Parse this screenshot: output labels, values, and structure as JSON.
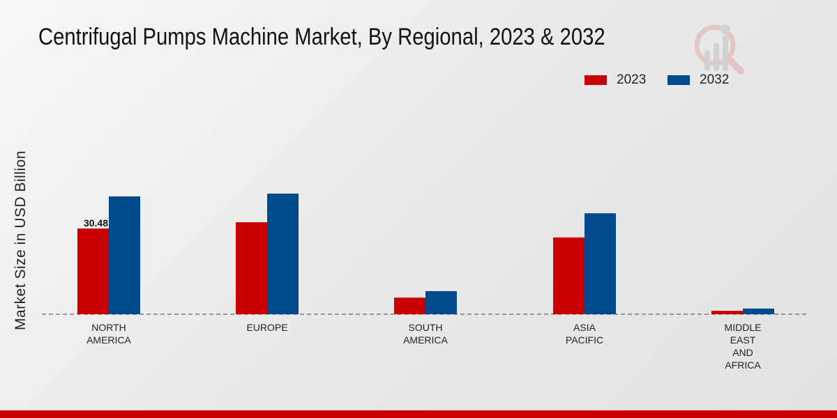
{
  "chart_data": {
    "type": "bar",
    "title": "Centrifugal Pumps Machine Market, By Regional, 2023 & 2032",
    "xlabel": "",
    "ylabel": "Market Size in USD Billion",
    "categories": [
      [
        "NORTH",
        "AMERICA"
      ],
      [
        "EUROPE"
      ],
      [
        "SOUTH",
        "AMERICA"
      ],
      [
        "ASIA",
        "PACIFIC"
      ],
      [
        "MIDDLE",
        "EAST",
        "AND",
        "AFRICA"
      ]
    ],
    "series": [
      {
        "name": "2023",
        "color": "#c80000",
        "values": [
          30.48,
          32.7,
          5.9,
          27.3,
          1.2
        ]
      },
      {
        "name": "2032",
        "color": "#004a8c",
        "values": [
          41.9,
          42.9,
          8.2,
          35.9,
          2.0
        ]
      }
    ],
    "data_labels": [
      {
        "series": 0,
        "index": 0,
        "text": "30.48"
      }
    ],
    "ylim": [
      0,
      50
    ],
    "grid": false,
    "legend": "top-right"
  }
}
